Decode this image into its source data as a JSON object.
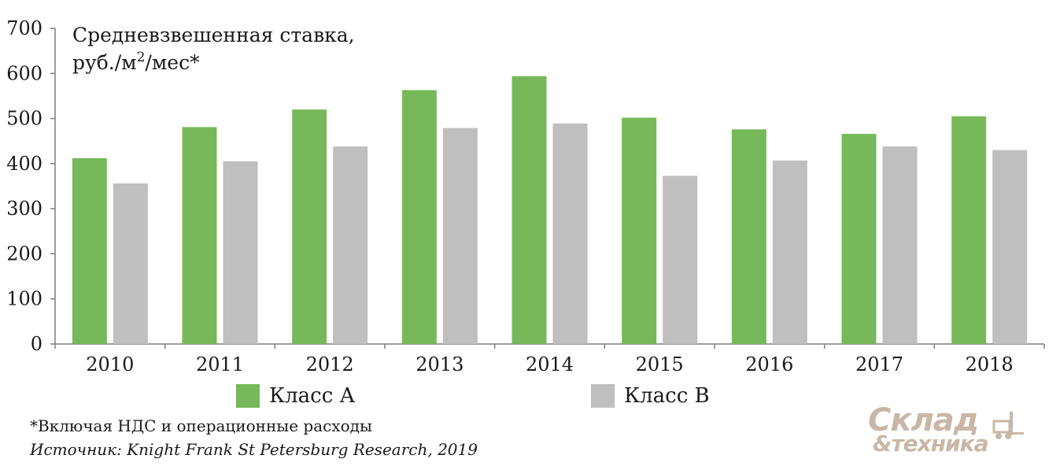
{
  "chart_data": {
    "type": "bar",
    "ylabel_line1": "Средневзвешенная ставка,",
    "ylabel_line2_prefix": "руб./м",
    "ylabel_line2_sup": "2",
    "ylabel_line2_suffix": "/мес*",
    "categories": [
      "2010",
      "2011",
      "2012",
      "2013",
      "2014",
      "2015",
      "2016",
      "2017",
      "2018"
    ],
    "series": [
      {
        "name": "Класс А",
        "color": "#77b95a",
        "values": [
          412,
          481,
          520,
          563,
          594,
          502,
          476,
          466,
          505
        ]
      },
      {
        "name": "Класс В",
        "color": "#bfbfbf",
        "values": [
          356,
          405,
          438,
          479,
          489,
          373,
          407,
          438,
          430
        ]
      }
    ],
    "ylim": [
      0,
      700
    ],
    "yticks": [
      0,
      100,
      200,
      300,
      400,
      500,
      600,
      700
    ],
    "grid": false,
    "legend_position": "bottom"
  },
  "footnote": "*Включая НДС и операционные расходы",
  "source": "Источник: Knight Frank St Petersburg Research, 2019",
  "logo": {
    "word1": "Склад",
    "word2": "&техника",
    "icon": "forklift-icon",
    "color": "#c9b7a6"
  }
}
